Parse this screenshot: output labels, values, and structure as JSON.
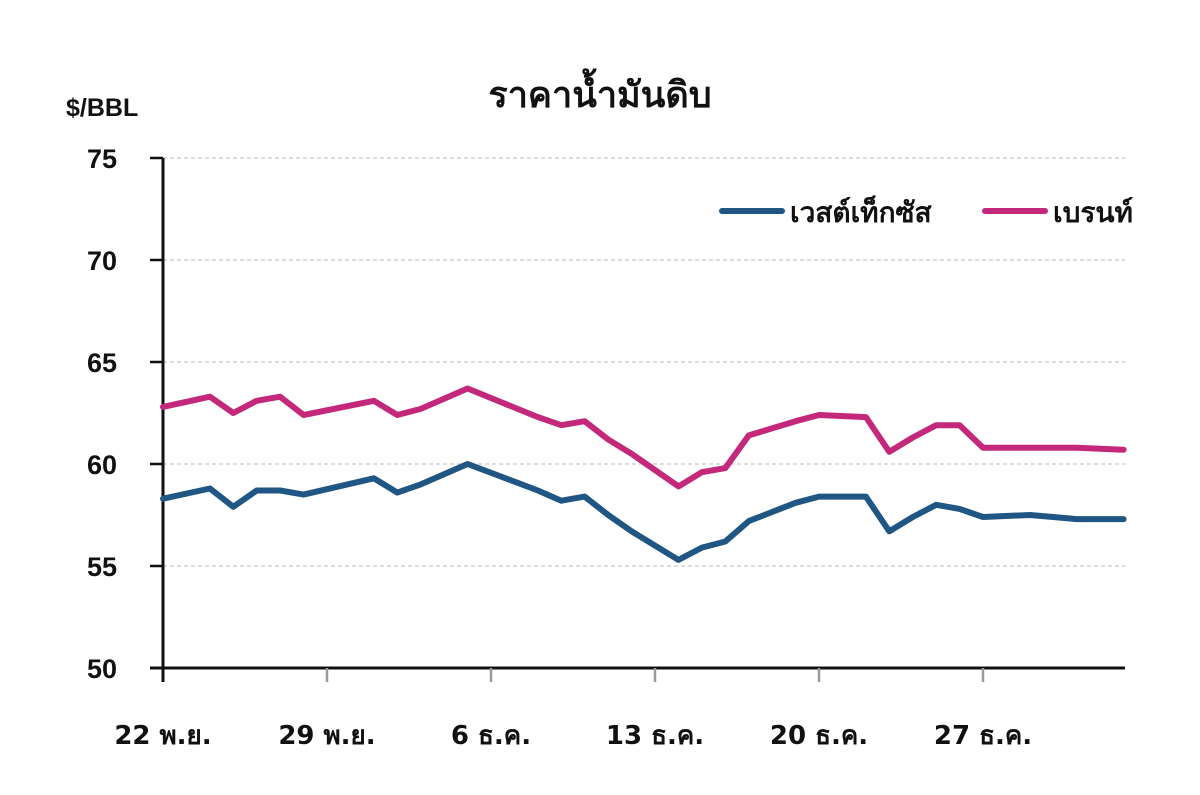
{
  "chart_data": {
    "type": "line",
    "title": "ราคาน้ำมันดิบ",
    "xlabel": "",
    "ylabel": "$/BBL",
    "ylim": [
      50,
      75
    ],
    "yticks": [
      50,
      55,
      60,
      65,
      70,
      75
    ],
    "xtick_labels": [
      "22 พ.ย.",
      "29 พ.ย.",
      "6 ธ.ค.",
      "13 ธ.ค.",
      "20 ธ.ค.",
      "27 ธ.ค."
    ],
    "grid": "horizontal dashed",
    "legend_position": "top-right",
    "x_day_offsets": [
      0,
      2,
      3,
      4,
      5,
      6,
      9,
      10,
      11,
      13,
      16,
      17,
      18,
      19,
      20,
      22,
      23,
      24,
      25,
      27,
      28,
      30,
      31,
      32,
      33,
      34,
      35,
      37,
      38,
      39,
      41
    ],
    "series": [
      {
        "name": "เวสต์เท็กซัส",
        "color": "#1f5683",
        "values": [
          58.3,
          58.8,
          57.9,
          58.7,
          58.7,
          58.5,
          59.3,
          58.6,
          59.0,
          60.0,
          58.7,
          58.2,
          58.4,
          57.5,
          56.7,
          55.3,
          55.9,
          56.2,
          57.2,
          58.1,
          58.4,
          58.4,
          56.7,
          57.4,
          58.0,
          57.8,
          57.4,
          57.5,
          57.4,
          57.3,
          57.3
        ]
      },
      {
        "name": "เบรนท์",
        "color": "#c3287b",
        "values": [
          62.8,
          63.3,
          62.5,
          63.1,
          63.3,
          62.4,
          63.1,
          62.4,
          62.7,
          63.7,
          62.3,
          61.9,
          62.1,
          61.2,
          60.5,
          58.9,
          59.6,
          59.8,
          61.4,
          62.1,
          62.4,
          62.3,
          60.6,
          61.3,
          61.9,
          61.9,
          60.8,
          60.8,
          60.8,
          60.8,
          60.7
        ]
      }
    ]
  },
  "labels": {
    "title": "ราคาน้ำมันดิบ",
    "ylabel": "$/BBL",
    "legend_wti": "เวสต์เท็กซัส",
    "legend_brent": "เบรนท์"
  }
}
